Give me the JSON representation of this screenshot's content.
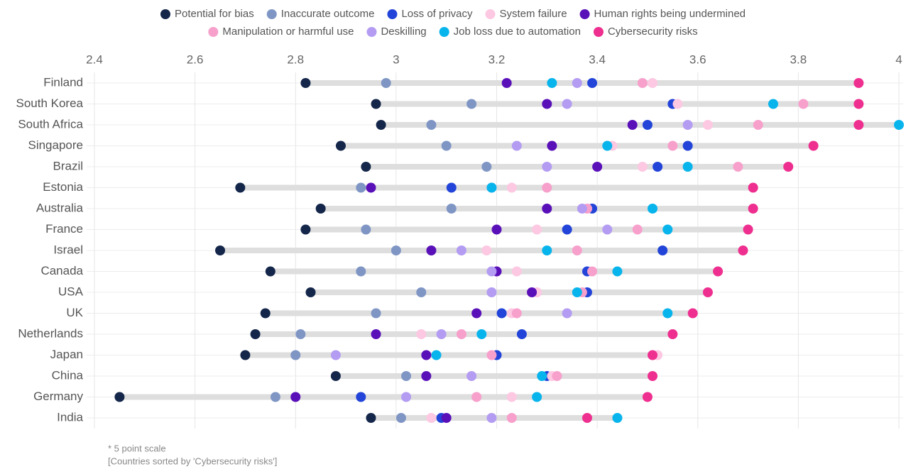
{
  "chart_data": {
    "type": "dot",
    "categories": [
      "Finland",
      "South Korea",
      "South Africa",
      "Singapore",
      "Brazil",
      "Estonia",
      "Australia",
      "France",
      "Israel",
      "Canada",
      "USA",
      "UK",
      "Netherlands",
      "Japan",
      "China",
      "Germany",
      "India"
    ],
    "series": [
      {
        "name": "Potential for bias",
        "color": "#14264a",
        "values": [
          2.82,
          2.96,
          2.97,
          2.89,
          2.94,
          2.69,
          2.85,
          2.82,
          2.65,
          2.75,
          2.83,
          2.74,
          2.72,
          2.7,
          2.88,
          2.45,
          2.95
        ]
      },
      {
        "name": "Inaccurate outcome",
        "color": "#7f96c5",
        "values": [
          2.98,
          3.15,
          3.07,
          3.1,
          3.18,
          2.93,
          3.11,
          2.94,
          3.0,
          2.93,
          3.05,
          2.96,
          2.81,
          2.8,
          3.02,
          2.76,
          3.01
        ]
      },
      {
        "name": "Loss of privacy",
        "color": "#2244d8",
        "values": [
          3.39,
          3.55,
          3.5,
          3.58,
          3.52,
          3.11,
          3.39,
          3.34,
          3.53,
          3.38,
          3.38,
          3.21,
          3.25,
          3.2,
          3.3,
          2.93,
          3.09
        ]
      },
      {
        "name": "System failure",
        "color": "#fdc8e2",
        "values": [
          3.51,
          3.56,
          3.62,
          3.43,
          3.49,
          3.23,
          3.38,
          3.28,
          3.18,
          3.24,
          3.28,
          3.23,
          3.05,
          3.52,
          3.31,
          3.23,
          3.07
        ]
      },
      {
        "name": "Human rights being undermined",
        "color": "#5a10b8",
        "values": [
          3.22,
          3.3,
          3.47,
          3.31,
          3.4,
          2.95,
          3.3,
          3.2,
          3.07,
          3.2,
          3.27,
          3.16,
          2.96,
          3.06,
          3.06,
          2.8,
          3.1
        ]
      },
      {
        "name": "Manipulation or harmful use",
        "color": "#f7a0cc",
        "values": [
          3.49,
          3.81,
          3.72,
          3.55,
          3.68,
          3.3,
          3.38,
          3.48,
          3.36,
          3.39,
          3.37,
          3.24,
          3.13,
          3.19,
          3.32,
          3.16,
          3.23
        ]
      },
      {
        "name": "Deskilling",
        "color": "#b39cf2",
        "values": [
          3.36,
          3.34,
          3.58,
          3.24,
          3.3,
          3.19,
          3.37,
          3.42,
          3.13,
          3.19,
          3.19,
          3.34,
          3.09,
          2.88,
          3.15,
          3.02,
          3.19
        ]
      },
      {
        "name": "Job loss due to automation",
        "color": "#08b4ec",
        "values": [
          3.31,
          3.75,
          4.0,
          3.42,
          3.58,
          3.19,
          3.51,
          3.54,
          3.3,
          3.44,
          3.36,
          3.54,
          3.17,
          3.08,
          3.29,
          3.28,
          3.44
        ]
      },
      {
        "name": "Cybersecurity risks",
        "color": "#ee2f8f",
        "values": [
          3.92,
          3.92,
          3.92,
          3.83,
          3.78,
          3.71,
          3.71,
          3.7,
          3.69,
          3.64,
          3.62,
          3.59,
          3.55,
          3.51,
          3.51,
          3.5,
          3.38
        ]
      }
    ],
    "xlim": [
      2.4,
      4
    ],
    "xticks": [
      2.4,
      2.6,
      2.8,
      3,
      3.2,
      3.4,
      3.6,
      3.8,
      4
    ],
    "grid": true,
    "notes": [
      "* 5 point scale",
      "[Countries sorted by 'Cybersecurity risks']"
    ]
  }
}
